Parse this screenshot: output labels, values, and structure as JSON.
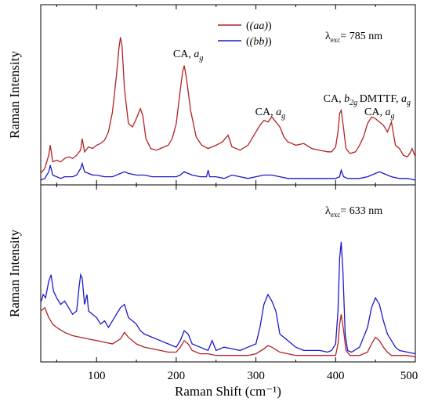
{
  "chart_data": [
    {
      "type": "line",
      "panel": "top",
      "annotation_excitation": {
        "symbol": "λ",
        "sub": "exc",
        "rest": "= 785 nm"
      },
      "ylabel": "Raman Intensity",
      "xlim": [
        30,
        500
      ],
      "ylim": [
        0,
        1
      ],
      "y_ticks_shown": false,
      "legend_position": "top-center",
      "series": [
        {
          "name": "(aa)",
          "color": "#b22222",
          "x": [
            30,
            35,
            40,
            42,
            45,
            50,
            55,
            60,
            65,
            70,
            75,
            80,
            82,
            85,
            90,
            95,
            100,
            105,
            110,
            115,
            120,
            125,
            128,
            130,
            132,
            135,
            140,
            145,
            150,
            155,
            158,
            162,
            168,
            175,
            180,
            185,
            190,
            195,
            200,
            205,
            208,
            210,
            213,
            218,
            225,
            232,
            240,
            250,
            258,
            265,
            270,
            280,
            290,
            300,
            305,
            310,
            315,
            320,
            325,
            330,
            335,
            340,
            345,
            350,
            360,
            370,
            380,
            390,
            395,
            400,
            403,
            405,
            407,
            410,
            413,
            418,
            425,
            430,
            435,
            440,
            445,
            450,
            455,
            460,
            465,
            470,
            475,
            480,
            485,
            490,
            493,
            496,
            500
          ],
          "y": [
            0.05,
            0.08,
            0.16,
            0.22,
            0.12,
            0.13,
            0.12,
            0.14,
            0.15,
            0.14,
            0.16,
            0.19,
            0.26,
            0.18,
            0.21,
            0.2,
            0.22,
            0.23,
            0.25,
            0.3,
            0.42,
            0.64,
            0.8,
            0.87,
            0.82,
            0.56,
            0.35,
            0.33,
            0.38,
            0.44,
            0.4,
            0.26,
            0.2,
            0.19,
            0.2,
            0.21,
            0.22,
            0.26,
            0.35,
            0.55,
            0.66,
            0.7,
            0.62,
            0.43,
            0.27,
            0.22,
            0.2,
            0.22,
            0.24,
            0.28,
            0.21,
            0.19,
            0.22,
            0.3,
            0.34,
            0.37,
            0.36,
            0.39,
            0.36,
            0.33,
            0.27,
            0.24,
            0.23,
            0.22,
            0.23,
            0.2,
            0.19,
            0.18,
            0.18,
            0.21,
            0.3,
            0.41,
            0.43,
            0.32,
            0.2,
            0.17,
            0.18,
            0.22,
            0.27,
            0.35,
            0.39,
            0.38,
            0.36,
            0.34,
            0.3,
            0.36,
            0.22,
            0.2,
            0.16,
            0.15,
            0.17,
            0.2,
            0.15
          ]
        },
        {
          "name": "(bb)",
          "color": "#1a1acd",
          "x": [
            30,
            35,
            40,
            42,
            45,
            50,
            55,
            60,
            65,
            70,
            75,
            80,
            82,
            85,
            90,
            95,
            100,
            110,
            120,
            130,
            135,
            140,
            150,
            160,
            170,
            180,
            190,
            200,
            205,
            210,
            215,
            220,
            230,
            238,
            240,
            242,
            250,
            260,
            270,
            280,
            290,
            300,
            310,
            320,
            330,
            340,
            350,
            360,
            370,
            380,
            390,
            400,
            405,
            407,
            410,
            415,
            420,
            430,
            440,
            450,
            455,
            460,
            465,
            470,
            480,
            490,
            500
          ],
          "y": [
            0.01,
            0.02,
            0.06,
            0.1,
            0.04,
            0.03,
            0.02,
            0.03,
            0.03,
            0.03,
            0.04,
            0.08,
            0.11,
            0.06,
            0.05,
            0.04,
            0.04,
            0.03,
            0.03,
            0.05,
            0.06,
            0.05,
            0.04,
            0.04,
            0.03,
            0.03,
            0.03,
            0.03,
            0.04,
            0.06,
            0.05,
            0.04,
            0.03,
            0.03,
            0.07,
            0.03,
            0.03,
            0.02,
            0.04,
            0.03,
            0.02,
            0.03,
            0.04,
            0.04,
            0.03,
            0.02,
            0.02,
            0.02,
            0.02,
            0.02,
            0.02,
            0.02,
            0.03,
            0.07,
            0.03,
            0.02,
            0.02,
            0.02,
            0.03,
            0.05,
            0.06,
            0.05,
            0.04,
            0.03,
            0.02,
            0.02,
            0.01
          ]
        }
      ],
      "annotations": [
        {
          "text": "CA,",
          "var": "a",
          "sub": "g",
          "x": 215,
          "y": 0.75
        },
        {
          "text": "CA,",
          "var": "a",
          "sub": "g",
          "x": 318,
          "y": 0.4
        },
        {
          "text": "CA,",
          "var": "b",
          "sub": "2g",
          "x": 406,
          "y": 0.48
        },
        {
          "text": "DMTTF,",
          "var": "a",
          "sub": "g",
          "x": 462,
          "y": 0.48
        },
        {
          "text": "CA,",
          "var": "a",
          "sub": "g",
          "x": 455,
          "y": 0.4
        }
      ]
    },
    {
      "type": "line",
      "panel": "bottom",
      "annotation_excitation": {
        "symbol": "λ",
        "sub": "exc",
        "rest": "= 633 nm"
      },
      "ylabel": "Raman Intensity",
      "xlabel": "Raman Shift (cm⁻¹)",
      "xlim": [
        30,
        500
      ],
      "ylim": [
        0,
        1
      ],
      "x_ticks": [
        100,
        200,
        300,
        400,
        500
      ],
      "y_ticks_shown": false,
      "series": [
        {
          "name": "(aa)",
          "color": "#b22222",
          "x": [
            30,
            35,
            40,
            45,
            50,
            60,
            70,
            80,
            90,
            100,
            110,
            120,
            130,
            135,
            140,
            150,
            160,
            170,
            180,
            190,
            200,
            205,
            210,
            215,
            220,
            230,
            240,
            250,
            260,
            270,
            280,
            290,
            300,
            310,
            315,
            320,
            330,
            340,
            350,
            360,
            370,
            380,
            390,
            400,
            403,
            405,
            407,
            410,
            413,
            418,
            425,
            430,
            440,
            445,
            450,
            455,
            460,
            465,
            470,
            480,
            490,
            500
          ],
          "y": [
            0.3,
            0.32,
            0.26,
            0.22,
            0.2,
            0.17,
            0.15,
            0.14,
            0.13,
            0.12,
            0.11,
            0.1,
            0.13,
            0.17,
            0.14,
            0.1,
            0.08,
            0.07,
            0.06,
            0.05,
            0.05,
            0.08,
            0.12,
            0.1,
            0.06,
            0.04,
            0.04,
            0.03,
            0.03,
            0.03,
            0.03,
            0.03,
            0.04,
            0.07,
            0.09,
            0.08,
            0.05,
            0.04,
            0.03,
            0.03,
            0.03,
            0.03,
            0.03,
            0.03,
            0.1,
            0.22,
            0.28,
            0.18,
            0.06,
            0.03,
            0.03,
            0.03,
            0.05,
            0.1,
            0.14,
            0.12,
            0.08,
            0.05,
            0.03,
            0.03,
            0.03,
            0.02
          ]
        },
        {
          "name": "(bb)",
          "color": "#1a1acd",
          "x": [
            30,
            33,
            36,
            40,
            43,
            46,
            50,
            55,
            60,
            65,
            70,
            75,
            78,
            80,
            82,
            85,
            88,
            90,
            95,
            100,
            105,
            110,
            115,
            120,
            125,
            130,
            135,
            140,
            145,
            150,
            155,
            160,
            170,
            180,
            190,
            200,
            205,
            210,
            215,
            220,
            230,
            240,
            245,
            250,
            260,
            270,
            280,
            290,
            300,
            305,
            310,
            315,
            320,
            325,
            330,
            340,
            350,
            360,
            370,
            380,
            390,
            395,
            400,
            403,
            405,
            407,
            409,
            412,
            415,
            420,
            430,
            440,
            445,
            450,
            455,
            460,
            465,
            470,
            475,
            480,
            490,
            500
          ],
          "y": [
            0.35,
            0.4,
            0.38,
            0.48,
            0.52,
            0.42,
            0.38,
            0.34,
            0.36,
            0.32,
            0.28,
            0.3,
            0.44,
            0.52,
            0.5,
            0.34,
            0.4,
            0.3,
            0.28,
            0.26,
            0.22,
            0.24,
            0.2,
            0.24,
            0.28,
            0.32,
            0.34,
            0.26,
            0.24,
            0.22,
            0.18,
            0.16,
            0.14,
            0.12,
            0.1,
            0.08,
            0.12,
            0.18,
            0.16,
            0.1,
            0.08,
            0.06,
            0.12,
            0.06,
            0.08,
            0.07,
            0.06,
            0.08,
            0.1,
            0.2,
            0.34,
            0.4,
            0.36,
            0.3,
            0.16,
            0.12,
            0.08,
            0.06,
            0.06,
            0.06,
            0.05,
            0.06,
            0.1,
            0.3,
            0.62,
            0.72,
            0.55,
            0.16,
            0.06,
            0.05,
            0.08,
            0.2,
            0.32,
            0.38,
            0.34,
            0.24,
            0.16,
            0.12,
            0.08,
            0.06,
            0.05,
            0.04
          ]
        }
      ]
    }
  ]
}
